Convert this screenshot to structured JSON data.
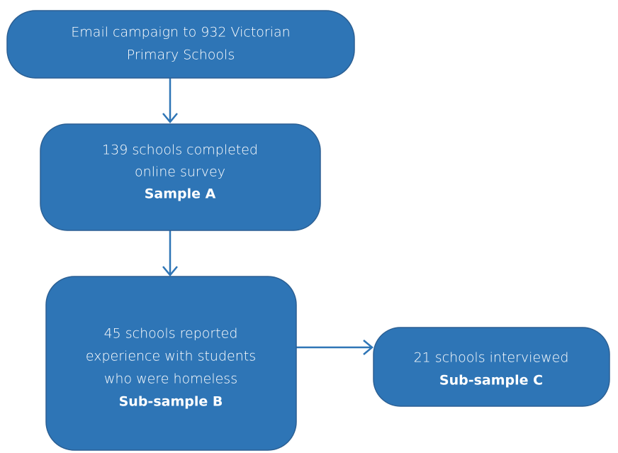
{
  "nodes": [
    {
      "lines": [
        "Email campaign to 932 Victorian",
        "Primary Schools"
      ]
    },
    {
      "lines": [
        "139 schools completed",
        "online survey"
      ],
      "sample": "Sample A"
    },
    {
      "lines": [
        "45 schools reported",
        "experience with students",
        "who were homeless"
      ],
      "sample": "Sub-sample B"
    },
    {
      "lines": [
        "21 schools interviewed"
      ],
      "sample": "Sub-sample C"
    }
  ]
}
